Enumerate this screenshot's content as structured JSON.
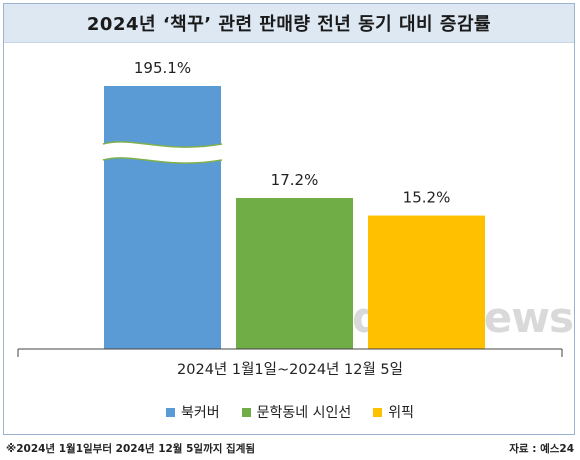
{
  "title": "2024년 ‘책꾸’ 관련 판매량 전년 동기 대비 증감률",
  "watermark": "datanews",
  "footnote": "※2024년 1월1일부터 2024년 12월 5일까지 집계됨",
  "source": "자료 : 예스24",
  "colors": {
    "title_bg": "#dde8f3",
    "frame": "#9bb3cf",
    "axis": "#333333"
  },
  "chart_data": {
    "type": "bar",
    "title": "2024년 ‘책꾸’ 관련 판매량 전년 동기 대비 증감률",
    "xlabel": "2024년 1월1일~2024년 12월 5일",
    "ylabel": "",
    "axis_break": true,
    "series": [
      {
        "name": "북커버",
        "value": 195.1,
        "label": "195.1%",
        "color": "#5b9bd5"
      },
      {
        "name": "문학동네 시인선",
        "value": 17.2,
        "label": "17.2%",
        "color": "#70ad47"
      },
      {
        "name": "위픽",
        "value": 15.2,
        "label": "15.2%",
        "color": "#ffc000"
      }
    ],
    "legend_position": "bottom",
    "grid": false
  }
}
